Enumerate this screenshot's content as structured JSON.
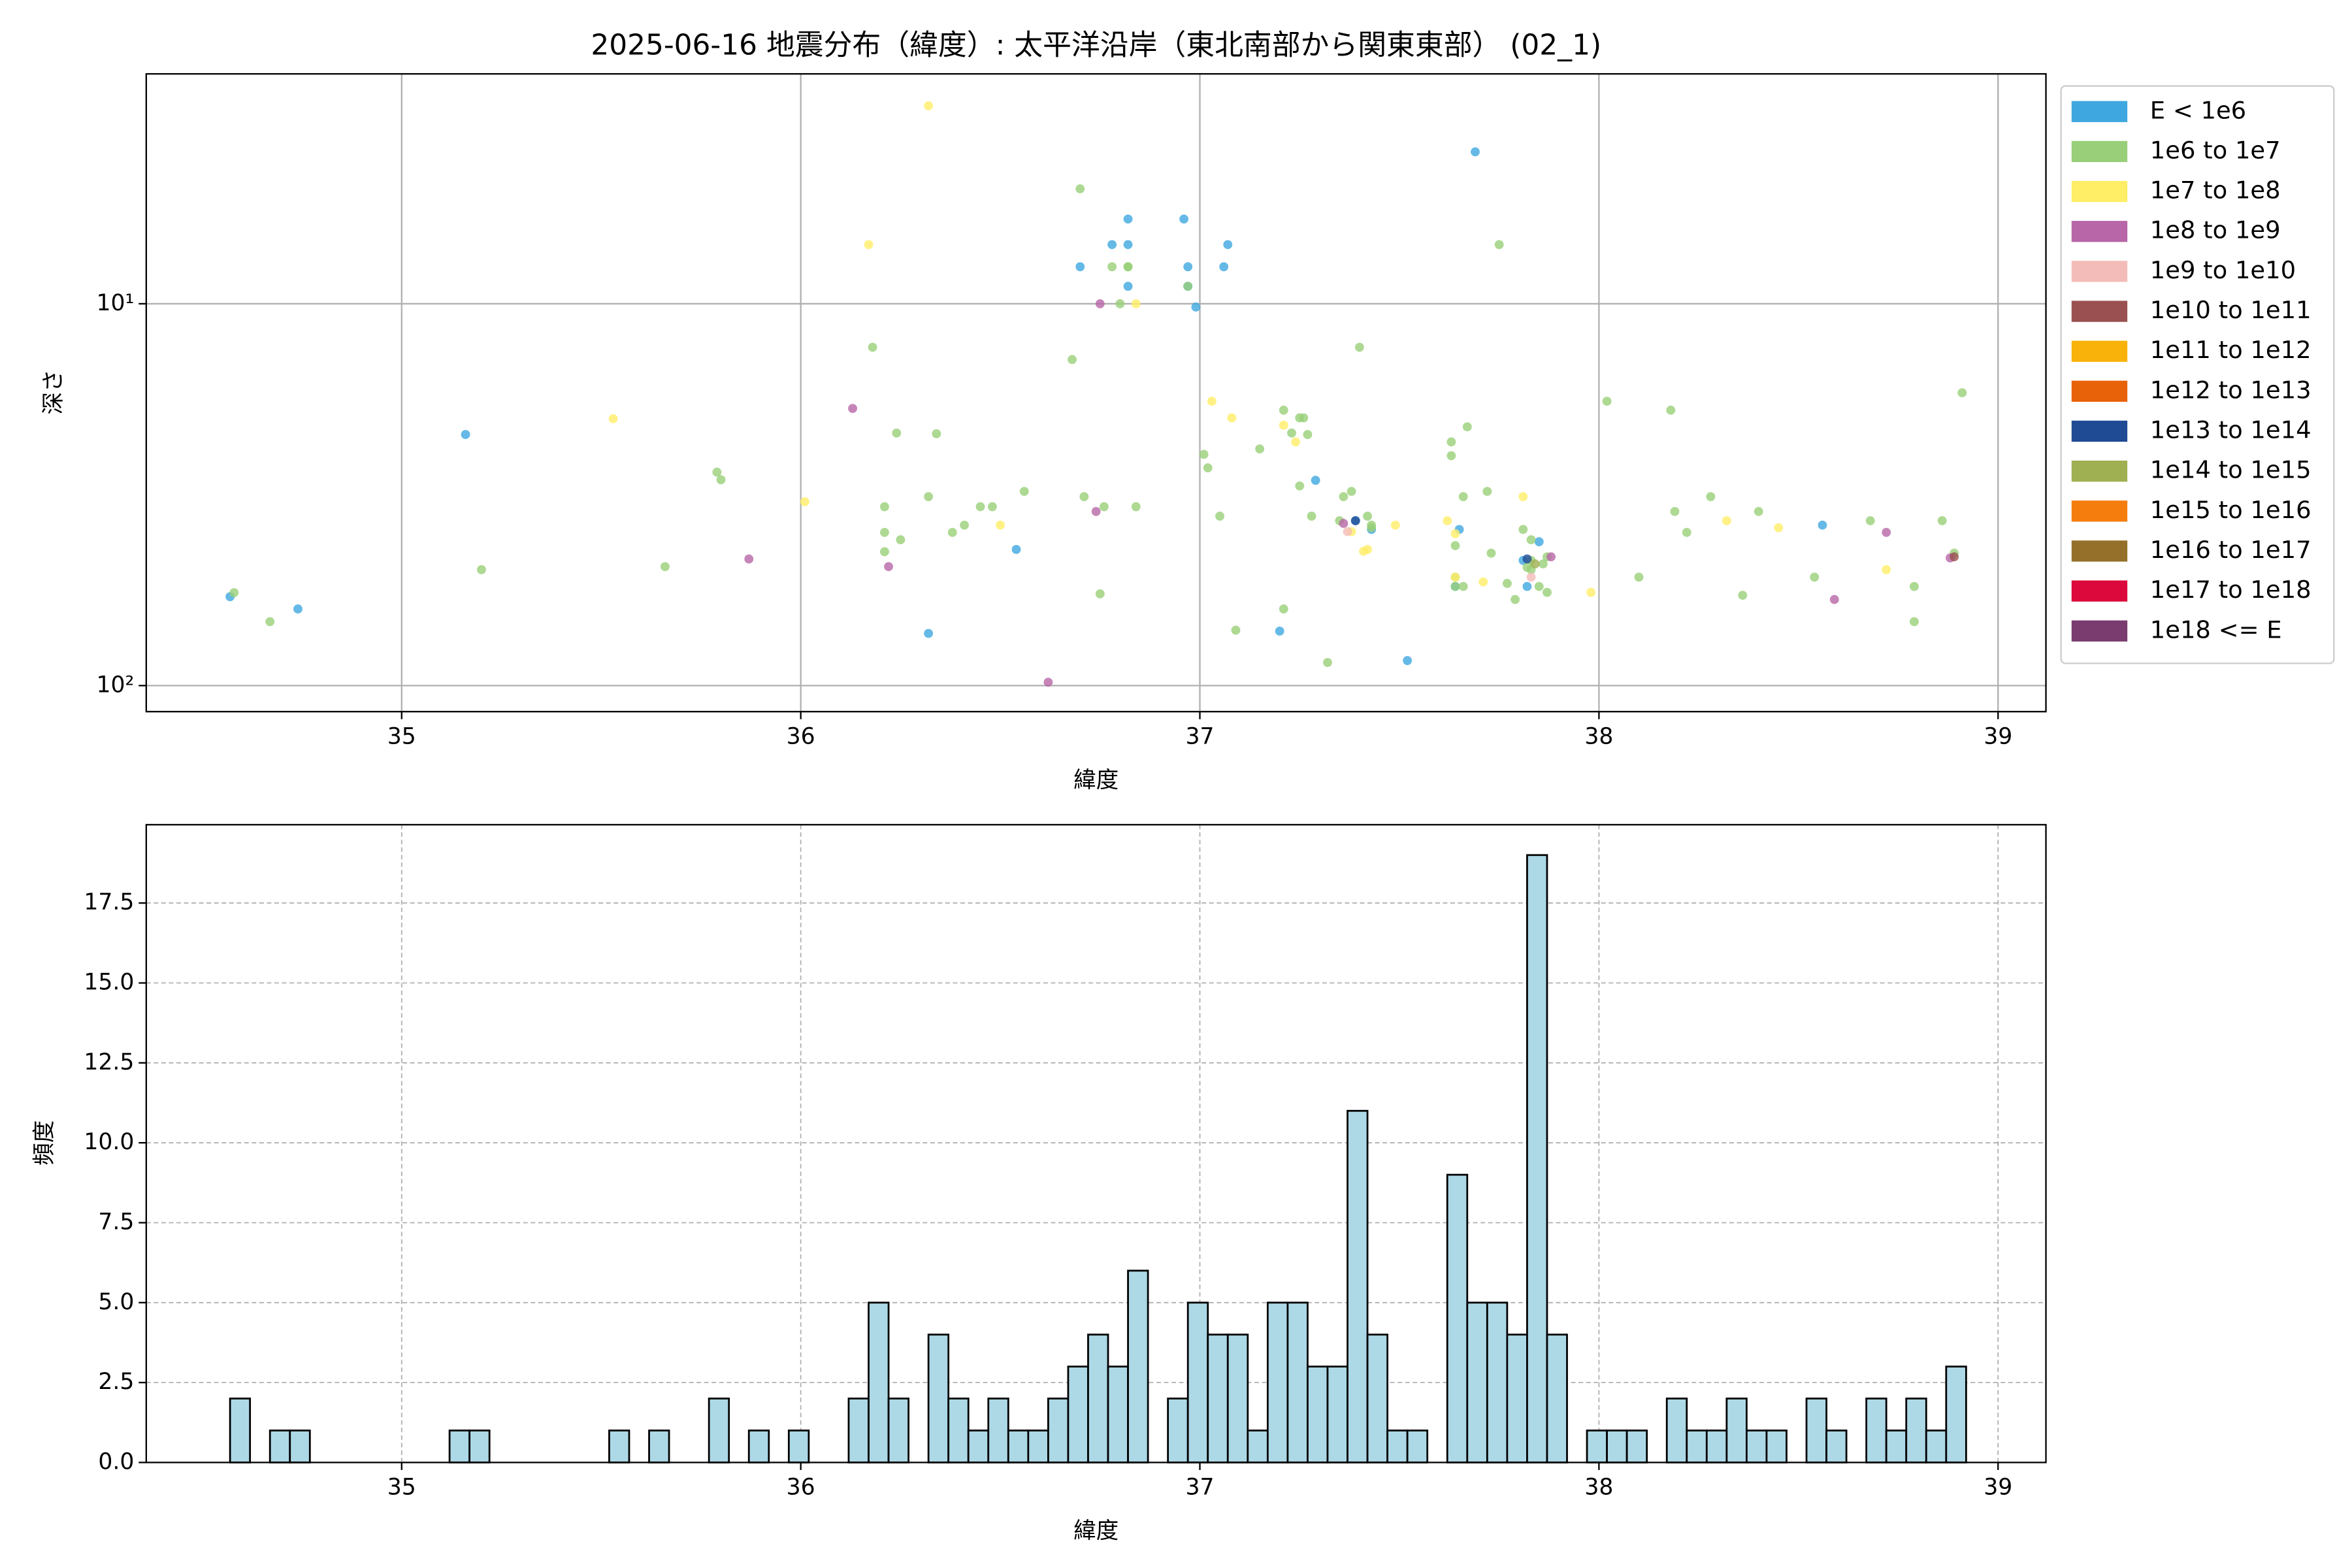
{
  "chart_data": [
    {
      "type": "scatter",
      "title": "2025-06-16 地震分布（緯度）: 太平洋沿岸（東北南部から関東東部） (02_1)",
      "xlabel": "緯度",
      "ylabel": "深さ",
      "xlim": [
        34.36,
        39.12
      ],
      "xticks": [
        35,
        36,
        37,
        38,
        39
      ],
      "ylim": [
        117,
        2.5
      ],
      "yscale": "log",
      "yticks": [
        {
          "value": 10,
          "label": "10¹"
        },
        {
          "value": 100,
          "label": "10²"
        }
      ],
      "grid": true,
      "legend": "outside-right",
      "series": [
        {
          "name": "E < 1e6",
          "color": "#3fa7e0",
          "x": [
            34.57,
            34.74,
            35.16,
            36.32,
            36.54,
            36.7,
            36.78,
            36.82,
            36.82,
            36.82,
            36.96,
            36.97,
            36.97,
            36.99,
            37.07,
            37.06,
            37.69,
            37.29,
            37.2,
            37.52,
            37.39,
            37.43,
            37.65,
            37.64,
            37.85,
            37.81,
            38.56,
            37.82
          ],
          "values": [
            58.5,
            63,
            22,
            73,
            44,
            8.0,
            7.0,
            6.0,
            7.0,
            9.0,
            6.0,
            8.0,
            9.0,
            10.2,
            7.0,
            8.0,
            4.0,
            29,
            72,
            86,
            37,
            39,
            39,
            55,
            42,
            47,
            38,
            55
          ]
        },
        {
          "name": "1e6 to 1e7",
          "color": "#98cf78",
          "x": [
            34.58,
            34.67,
            35.2,
            35.79,
            35.8,
            35.66,
            36.18,
            36.24,
            36.21,
            36.21,
            36.21,
            36.25,
            36.32,
            36.34,
            36.38,
            36.41,
            36.45,
            36.48,
            36.56,
            36.68,
            36.7,
            36.71,
            36.76,
            36.75,
            36.78,
            36.8,
            36.82,
            36.82,
            36.97,
            37.01,
            37.02,
            37.05,
            37.09,
            37.15,
            37.21,
            37.21,
            37.23,
            37.25,
            37.26,
            37.27,
            37.28,
            37.25,
            37.32,
            37.35,
            37.36,
            37.38,
            37.4,
            37.42,
            37.43,
            37.43,
            37.63,
            37.63,
            37.64,
            37.64,
            37.67,
            37.66,
            37.66,
            37.64,
            37.72,
            37.73,
            37.75,
            37.77,
            37.79,
            37.81,
            37.83,
            37.83,
            37.83,
            37.82,
            37.85,
            37.87,
            37.87,
            37.86,
            38.02,
            38.1,
            38.18,
            38.19,
            38.22,
            38.28,
            38.36,
            38.4,
            38.54,
            38.68,
            38.79,
            38.79,
            38.86,
            38.89,
            38.91,
            36.84
          ],
          "values": [
            57.1,
            68,
            49.7,
            27.6,
            28.9,
            48.8,
            13.0,
            21.8,
            34,
            39.7,
            44.6,
            41.5,
            32,
            21.9,
            39.7,
            38,
            34,
            34,
            31,
            14,
            5.0,
            32,
            34,
            57.5,
            8.0,
            10,
            8.0,
            8.0,
            9.0,
            24.8,
            26.9,
            36,
            71.6,
            24,
            63,
            19.0,
            21.8,
            19.9,
            19.9,
            22,
            36,
            30,
            87,
            37,
            32,
            31,
            13.0,
            36,
            38.6,
            38,
            23,
            25,
            43,
            55,
            21,
            32,
            55,
            52,
            31,
            45,
            7.0,
            54,
            59.5,
            39,
            41.5,
            47,
            49.7,
            49,
            55,
            57,
            46,
            48,
            18,
            52,
            19,
            35,
            39.7,
            32,
            58,
            35,
            52,
            37,
            55,
            68,
            37,
            45,
            17.1,
            34
          ]
        },
        {
          "name": "1e7 to 1e8",
          "color": "#ffee66",
          "x": [
            36.32,
            36.17,
            35.53,
            36.01,
            36.5,
            36.84,
            37.03,
            37.08,
            37.21,
            37.24,
            37.38,
            37.41,
            37.42,
            37.49,
            37.62,
            37.64,
            37.71,
            37.81,
            37.98,
            38.32,
            38.45,
            38.72,
            37.64
          ],
          "values": [
            3.03,
            7.0,
            20,
            33,
            38,
            10.0,
            18,
            19.9,
            20.8,
            23,
            39.5,
            44.5,
            44,
            38,
            37,
            52,
            53.5,
            32,
            57,
            37,
            38.6,
            49.7,
            40
          ]
        },
        {
          "name": "1e8 to 1e9",
          "color": "#b866a8",
          "x": [
            36.13,
            35.87,
            36.22,
            36.62,
            36.75,
            36.74,
            38.59,
            38.72,
            37.88,
            37.36,
            38.88
          ],
          "values": [
            18.8,
            46.6,
            48.8,
            98,
            10.0,
            35,
            59.5,
            39.7,
            46,
            37.6,
            46.3
          ]
        },
        {
          "name": "1e9 to 1e10",
          "color": "#f4bcb8",
          "x": [
            37.37,
            37.83
          ],
          "values": [
            39.5,
            52
          ]
        },
        {
          "name": "1e10 to 1e11",
          "color": "#9a5050",
          "x": [
            38.89
          ],
          "values": [
            46
          ]
        },
        {
          "name": "1e11 to 1e12",
          "color": "#f9b20a",
          "x": [],
          "values": []
        },
        {
          "name": "1e12 to 1e13",
          "color": "#e8620a",
          "x": [],
          "values": []
        },
        {
          "name": "1e13 to 1e14",
          "color": "#1f4a94",
          "x": [
            37.39,
            37.82
          ],
          "values": [
            37,
            46.6
          ]
        },
        {
          "name": "1e14 to 1e15",
          "color": "#9fb052",
          "x": [
            37.84
          ],
          "values": [
            48
          ]
        },
        {
          "name": "1e15 to 1e16",
          "color": "#f47d0e",
          "x": [],
          "values": []
        },
        {
          "name": "1e16 to 1e17",
          "color": "#94702a",
          "x": [],
          "values": []
        },
        {
          "name": "1e17 to 1e18",
          "color": "#dc0a3c",
          "x": [],
          "values": []
        },
        {
          "name": "1e18 <= E",
          "color": "#7a3c6e",
          "x": [],
          "values": []
        }
      ]
    },
    {
      "type": "histogram",
      "xlabel": "緯度",
      "ylabel": "頻度",
      "xlim": [
        34.36,
        39.12
      ],
      "xticks": [
        35,
        36,
        37,
        38,
        39
      ],
      "ylim": [
        0,
        19.95
      ],
      "yticks": [
        {
          "value": 0,
          "label": "0.0"
        },
        {
          "value": 2.5,
          "label": "2.5"
        },
        {
          "value": 5,
          "label": "5.0"
        },
        {
          "value": 7.5,
          "label": "7.5"
        },
        {
          "value": 10,
          "label": "10.0"
        },
        {
          "value": 12.5,
          "label": "12.5"
        },
        {
          "value": 15,
          "label": "15.0"
        },
        {
          "value": 17.5,
          "label": "17.5"
        }
      ],
      "grid": "dashed",
      "color": "#add8e6",
      "edgecolor": "#000000",
      "bins": [
        34.57,
        34.62,
        34.67,
        34.72,
        34.77,
        34.82,
        34.87,
        34.92,
        34.97,
        35.02,
        35.07,
        35.12,
        35.17,
        35.22,
        35.27,
        35.32,
        35.37,
        35.42,
        35.47,
        35.52,
        35.57,
        35.62,
        35.67,
        35.72,
        35.77,
        35.82,
        35.87,
        35.92,
        35.97,
        36.02,
        36.07,
        36.12,
        36.17,
        36.22,
        36.27,
        36.32,
        36.37,
        36.42,
        36.47,
        36.52,
        36.57,
        36.62,
        36.67,
        36.72,
        36.77,
        36.82,
        36.87,
        36.92,
        36.97,
        37.02,
        37.07,
        37.12,
        37.17,
        37.22,
        37.27,
        37.32,
        37.37,
        37.42,
        37.47,
        37.52,
        37.57,
        37.62,
        37.67,
        37.72,
        37.77,
        37.82,
        37.87,
        37.92,
        37.97,
        38.02,
        38.07,
        38.12,
        38.17,
        38.22,
        38.27,
        38.32,
        38.37,
        38.42,
        38.47,
        38.52,
        38.57,
        38.62,
        38.67,
        38.72,
        38.77,
        38.82,
        38.87,
        38.92
      ],
      "values": [
        2,
        0,
        1,
        1,
        0,
        0,
        0,
        0,
        0,
        0,
        0,
        1,
        1,
        0,
        0,
        0,
        0,
        0,
        0,
        1,
        0,
        1,
        0,
        0,
        2,
        0,
        1,
        0,
        1,
        0,
        0,
        2,
        5,
        2,
        0,
        4,
        2,
        1,
        2,
        1,
        1,
        2,
        3,
        4,
        3,
        6,
        0,
        2,
        5,
        4,
        4,
        1,
        5,
        5,
        3,
        3,
        11,
        4,
        1,
        1,
        0,
        9,
        5,
        5,
        4,
        19,
        4,
        0,
        1,
        1,
        1,
        0,
        2,
        1,
        1,
        2,
        1,
        1,
        0,
        2,
        1,
        0,
        2,
        1,
        2,
        1,
        3
      ]
    }
  ]
}
